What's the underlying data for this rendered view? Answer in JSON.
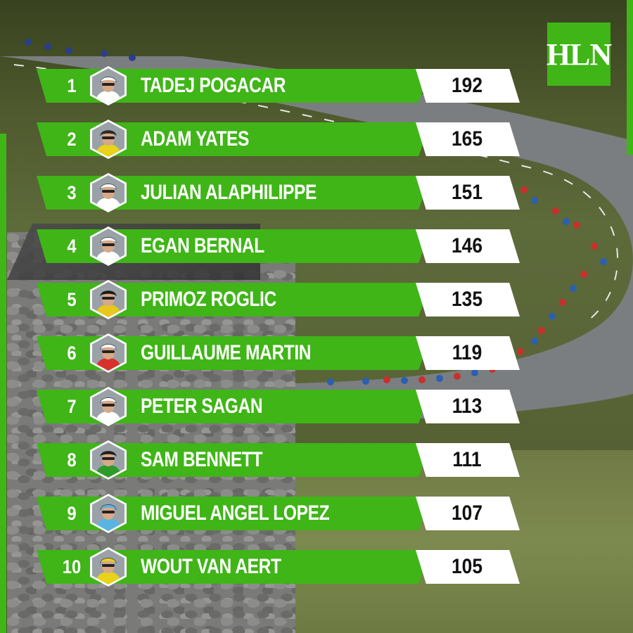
{
  "brand": {
    "logo_text": "HLN",
    "accent": "#3fb517"
  },
  "ranking": [
    {
      "rank": "1",
      "name": "TADEJ POGACAR",
      "points": "192",
      "jersey": "#ffffff",
      "helmet": "#ffffff"
    },
    {
      "rank": "2",
      "name": "ADAM YATES",
      "points": "165",
      "jersey": "#e8d21a",
      "helmet": "#2a2a2a"
    },
    {
      "rank": "3",
      "name": "JULIAN ALAPHILIPPE",
      "points": "151",
      "jersey": "#ffffff",
      "helmet": "#ffffff"
    },
    {
      "rank": "4",
      "name": "EGAN BERNAL",
      "points": "146",
      "jersey": "#ffffff",
      "helmet": "#ffffff"
    },
    {
      "rank": "5",
      "name": "PRIMOZ ROGLIC",
      "points": "135",
      "jersey": "#e8c81a",
      "helmet": "#1a1a1a"
    },
    {
      "rank": "6",
      "name": "GUILLAUME MARTIN",
      "points": "119",
      "jersey": "#d8322c",
      "helmet": "#ffffff"
    },
    {
      "rank": "7",
      "name": "PETER SAGAN",
      "points": "113",
      "jersey": "#ffffff",
      "helmet": "#ffffff"
    },
    {
      "rank": "8",
      "name": "SAM BENNETT",
      "points": "111",
      "jersey": "#2e9a2a",
      "helmet": "#1e1e1e"
    },
    {
      "rank": "9",
      "name": "MIGUEL ANGEL LOPEZ",
      "points": "107",
      "jersey": "#5ab4e0",
      "helmet": "#5ab4e0"
    },
    {
      "rank": "10",
      "name": "WOUT VAN AERT",
      "points": "105",
      "jersey": "#e8d21a",
      "helmet": "#e8d21a"
    }
  ]
}
